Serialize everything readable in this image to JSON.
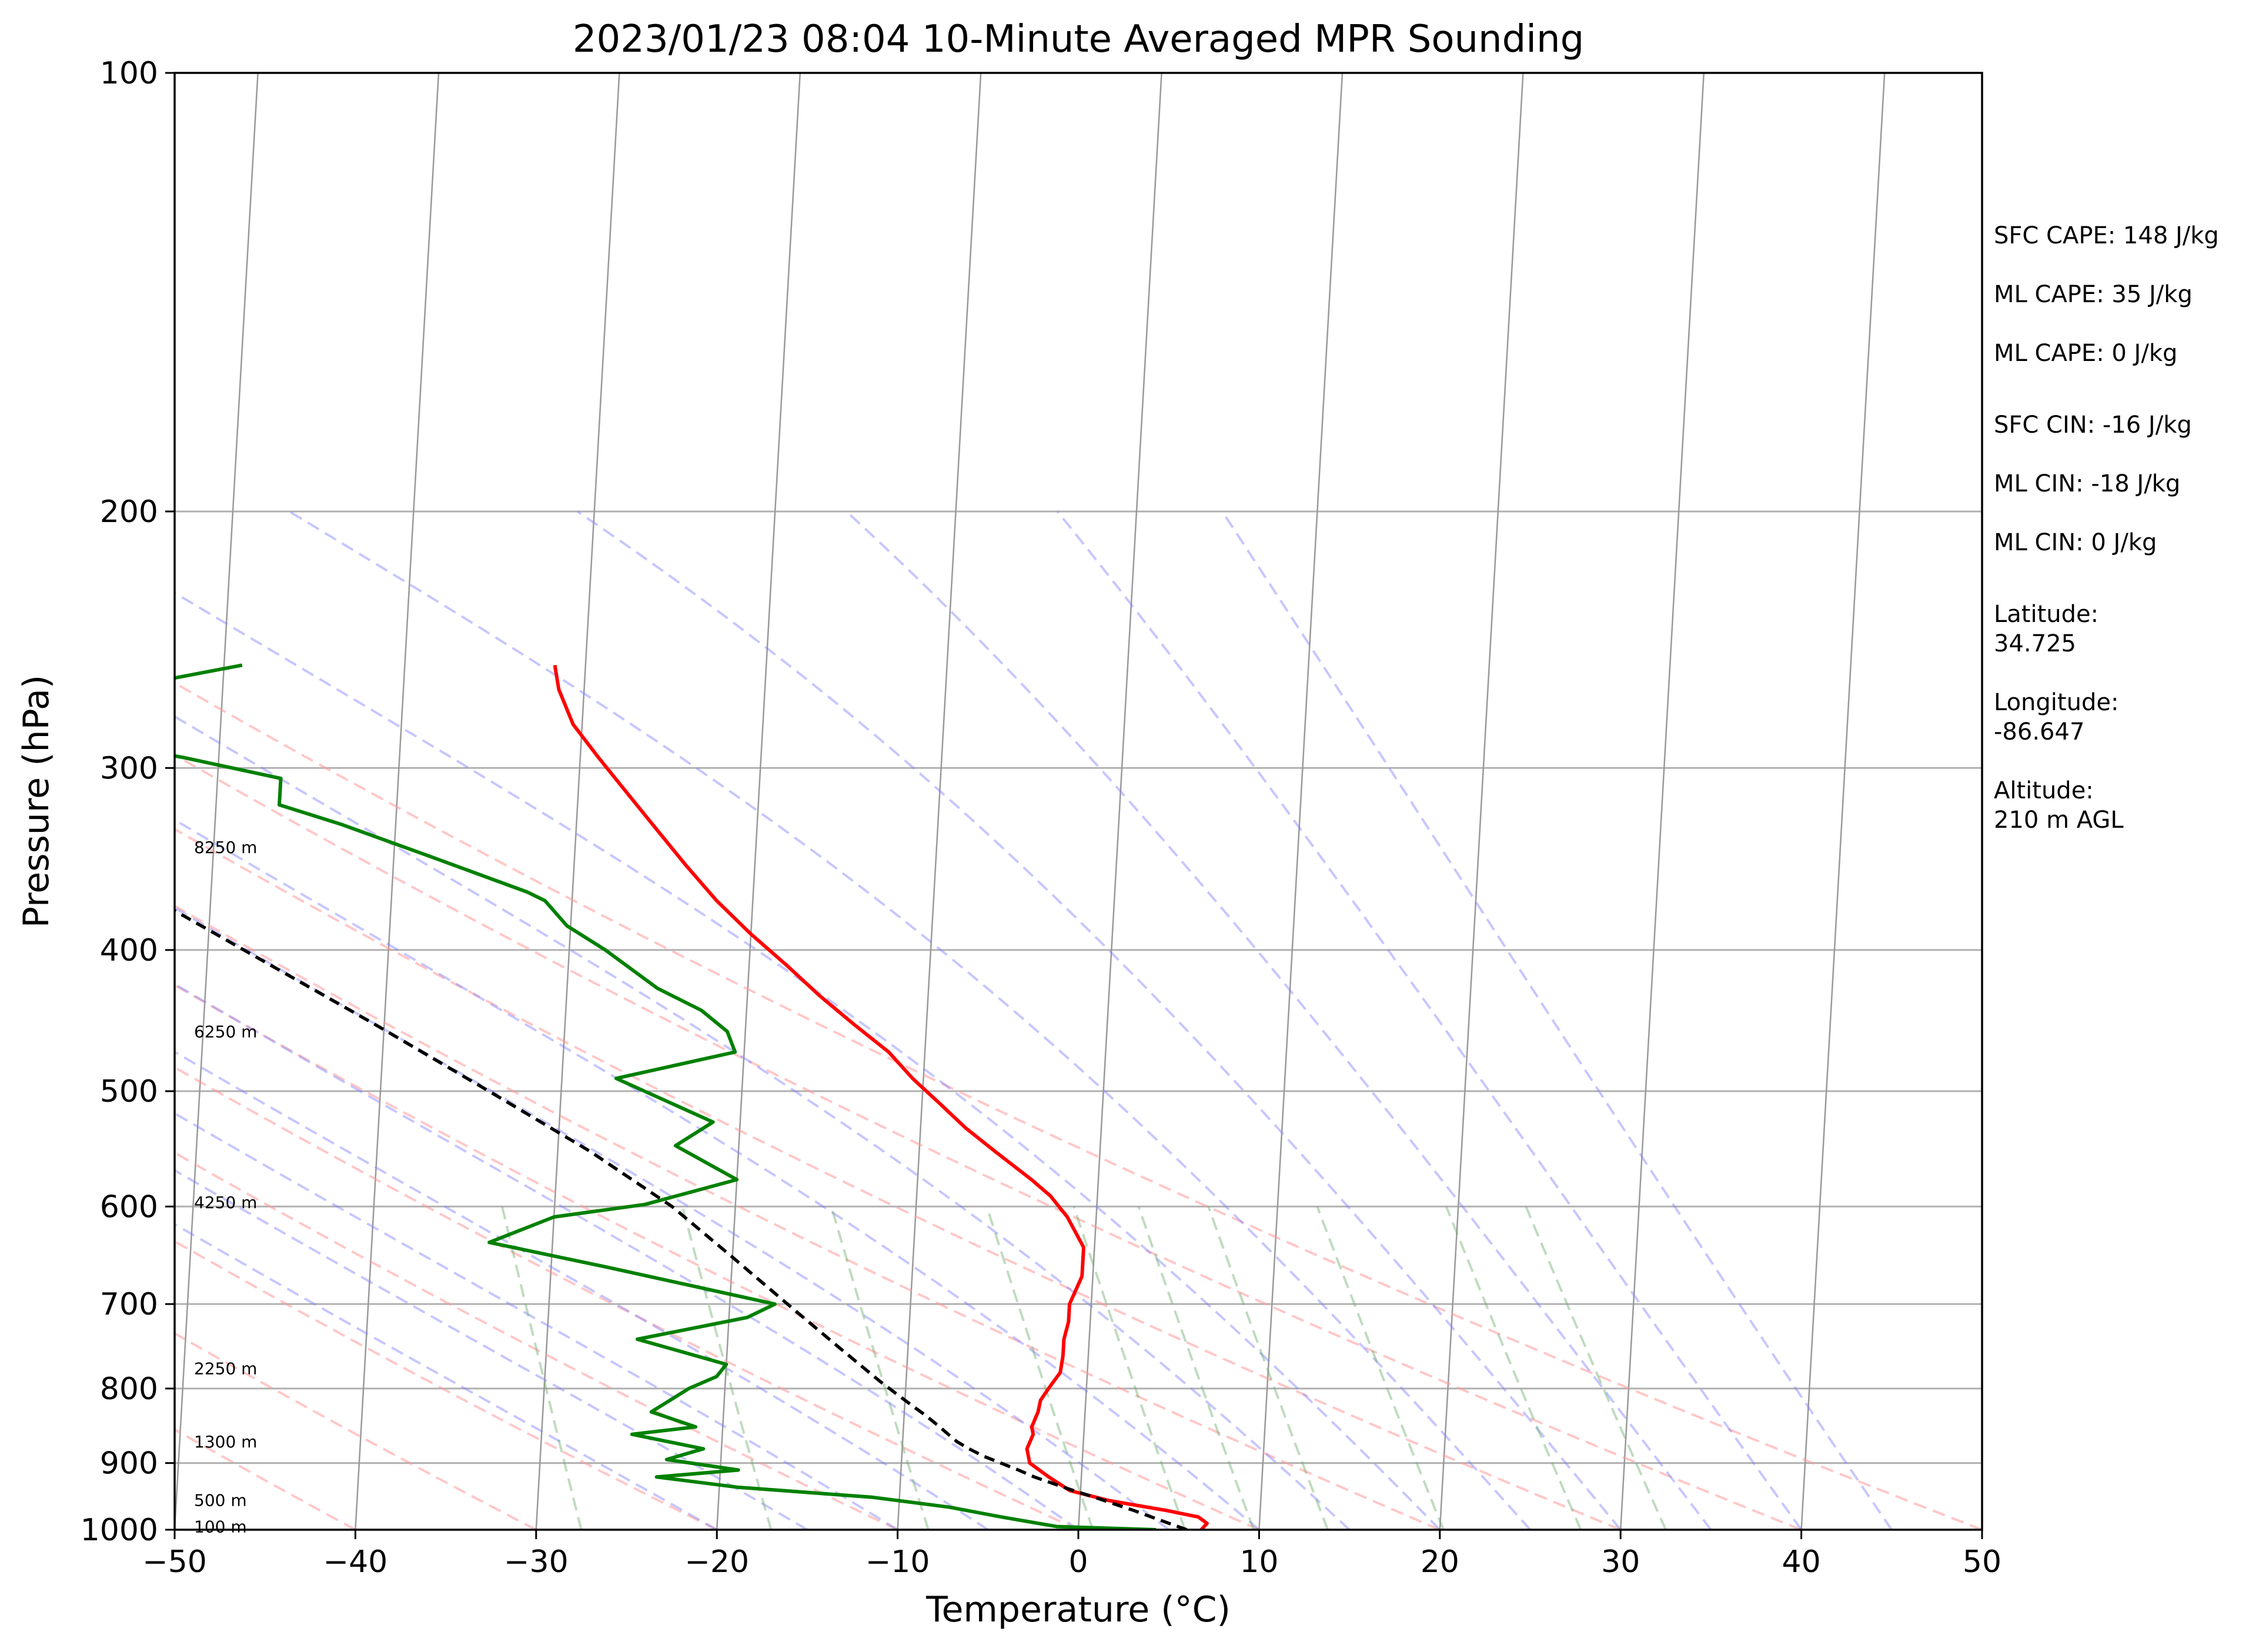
{
  "title": "2023/01/23 08:04 10-Minute Averaged MPR Sounding",
  "chart_data": {
    "type": "line",
    "title": "2023/01/23 08:04 10-Minute Averaged MPR Sounding",
    "xlabel": "Temperature (°C)",
    "ylabel": "Pressure (hPa)",
    "xlim": [
      -50,
      50
    ],
    "ylim": [
      1000,
      100
    ],
    "y_scale": "log",
    "grid": true,
    "x_ticks": [
      "−50",
      "−40",
      "−30",
      "−20",
      "−10",
      "0",
      "10",
      "20",
      "30",
      "40",
      "50"
    ],
    "y_ticks": [
      "100",
      "200",
      "300",
      "400",
      "500",
      "600",
      "700",
      "800",
      "900",
      "1000"
    ],
    "colors": {
      "temperature": "#ff0000",
      "dewpoint": "#008000",
      "parcel": "#000000",
      "dry_adiabats": "#ff9999",
      "moist_adiabats": "#8080ff",
      "mixing_ratio": "#70b070",
      "isotherms": "#999999"
    },
    "series": [
      {
        "key": "temperature",
        "points": [
          [
            6.8,
            1000
          ],
          [
            7.1,
            990
          ],
          [
            6.6,
            980
          ],
          [
            4.8,
            970
          ],
          [
            1.6,
            955
          ],
          [
            -0.6,
            940
          ],
          [
            -1.8,
            920
          ],
          [
            -2.9,
            900
          ],
          [
            -3.1,
            880
          ],
          [
            -2.8,
            860
          ],
          [
            -2.9,
            850
          ],
          [
            -2.6,
            830
          ],
          [
            -2.5,
            815
          ],
          [
            -2.1,
            800
          ],
          [
            -1.5,
            780
          ],
          [
            -1.4,
            760
          ],
          [
            -1.4,
            740
          ],
          [
            -1.2,
            720
          ],
          [
            -1.2,
            700
          ],
          [
            -0.6,
            670
          ],
          [
            -0.6,
            640
          ],
          [
            -1.6,
            610
          ],
          [
            -2.6,
            590
          ],
          [
            -3.7,
            575
          ],
          [
            -5.8,
            550
          ],
          [
            -7.5,
            530
          ],
          [
            -9.0,
            510
          ],
          [
            -10.6,
            490
          ],
          [
            -12.0,
            470
          ],
          [
            -14.0,
            450
          ],
          [
            -16.0,
            430
          ],
          [
            -17.9,
            410
          ],
          [
            -20.0,
            390
          ],
          [
            -22.0,
            370
          ],
          [
            -23.8,
            350
          ],
          [
            -25.6,
            330
          ],
          [
            -27.5,
            310
          ],
          [
            -29.0,
            295
          ],
          [
            -30.5,
            280
          ],
          [
            -31.4,
            265
          ],
          [
            -31.7,
            255
          ]
        ]
      },
      {
        "key": "dewpoint",
        "points": [
          [
            4.3,
            1000
          ],
          [
            -1.2,
            995
          ],
          [
            -4.3,
            980
          ],
          [
            -7.2,
            965
          ],
          [
            -11.5,
            950
          ],
          [
            -19.0,
            935
          ],
          [
            -23.5,
            920
          ],
          [
            -19.0,
            910
          ],
          [
            -23.0,
            895
          ],
          [
            -21.0,
            880
          ],
          [
            -25.0,
            860
          ],
          [
            -21.5,
            850
          ],
          [
            -24.0,
            830
          ],
          [
            -23.0,
            815
          ],
          [
            -22.0,
            800
          ],
          [
            -20.5,
            785
          ],
          [
            -20.0,
            770
          ],
          [
            -25.0,
            740
          ],
          [
            -19.0,
            715
          ],
          [
            -17.5,
            700
          ],
          [
            -27.0,
            660
          ],
          [
            -33.5,
            635
          ],
          [
            -30.0,
            610
          ],
          [
            -25.0,
            598
          ],
          [
            -20.0,
            575
          ],
          [
            -23.5,
            545
          ],
          [
            -21.5,
            525
          ],
          [
            -27.0,
            490
          ],
          [
            -20.5,
            470
          ],
          [
            -21.0,
            455
          ],
          [
            -22.5,
            440
          ],
          [
            -25.0,
            425
          ],
          [
            -28.0,
            400
          ],
          [
            -30.2,
            385
          ],
          [
            -31.5,
            370
          ],
          [
            -32.5,
            365
          ],
          [
            -38.0,
            345
          ],
          [
            -43.0,
            328
          ],
          [
            -46.5,
            318
          ],
          [
            -46.5,
            305
          ],
          [
            -52.0,
            295
          ],
          [
            -59.0,
            285
          ],
          [
            -62.0,
            278
          ],
          [
            -60.0,
            270
          ],
          [
            -56.0,
            265
          ],
          [
            -49.0,
            255
          ]
        ]
      },
      {
        "key": "parcel",
        "points": [
          [
            6.0,
            1000
          ],
          [
            5.0,
            990
          ],
          [
            4.0,
            980
          ],
          [
            3.0,
            970
          ],
          [
            1.9,
            960
          ],
          [
            0.8,
            950
          ],
          [
            -0.4,
            940
          ],
          [
            -1.5,
            930
          ],
          [
            -2.6,
            920
          ],
          [
            -3.5,
            910
          ],
          [
            -4.5,
            900
          ],
          [
            -5.5,
            890
          ],
          [
            -6.3,
            880
          ],
          [
            -7.0,
            870
          ],
          [
            -7.5,
            860
          ],
          [
            -8.0,
            850
          ],
          [
            -8.8,
            835
          ],
          [
            -9.7,
            820
          ],
          [
            -10.6,
            805
          ],
          [
            -11.5,
            790
          ],
          [
            -13.8,
            750
          ],
          [
            -16.5,
            705
          ],
          [
            -20.0,
            650
          ],
          [
            -23.5,
            600
          ],
          [
            -28.2,
            550
          ],
          [
            -34.0,
            500
          ],
          [
            -40.5,
            450
          ],
          [
            -48.0,
            400
          ],
          [
            -56.5,
            350
          ],
          [
            -64.0,
            310
          ],
          [
            -67.5,
            290
          ],
          [
            -72.0,
            265
          ],
          [
            -74.5,
            255
          ]
        ]
      }
    ],
    "height_labels": [
      {
        "text": "8250 m",
        "p": 340
      },
      {
        "text": "6250 m",
        "p": 455
      },
      {
        "text": "4250 m",
        "p": 596
      },
      {
        "text": "2250 m",
        "p": 775
      },
      {
        "text": "1300 m",
        "p": 870
      },
      {
        "text": "500 m",
        "p": 954
      },
      {
        "text": "100 m",
        "p": 995
      }
    ],
    "mixing_ratio_start_temps": [
      -27.5,
      -17,
      -8.3,
      0.8,
      5.9,
      9.7,
      13.8,
      20.2,
      27.8,
      32.5
    ],
    "moist_adiabat_temps": [
      -20,
      -15,
      -10,
      -5,
      0,
      5,
      10,
      15,
      20,
      25,
      30,
      35,
      40,
      45
    ],
    "dry_adiabat_temps": [
      -60,
      -50,
      -40,
      -30,
      -20,
      -10,
      0,
      10,
      20,
      30,
      40,
      50
    ],
    "isotherm_temps": [
      -150,
      -140,
      -130,
      -120,
      -110,
      -100,
      -90,
      -80,
      -70,
      -60,
      -50,
      -40,
      -30,
      -20,
      -10,
      0,
      10,
      20,
      30,
      40,
      50
    ]
  },
  "side_panel": {
    "sfc_cape": "SFC CAPE: 148 J/kg",
    "ml_cape_1": "ML CAPE: 35 J/kg",
    "ml_cape_2": "ML CAPE: 0 J/kg",
    "sfc_cin": "SFC CIN: -16 J/kg",
    "ml_cin_1": "ML CIN: -18 J/kg",
    "ml_cin_2": "ML CIN: 0 J/kg",
    "latitude_label": "Latitude:",
    "latitude_value": "34.725",
    "longitude_label": "Longitude:",
    "longitude_value": "-86.647",
    "altitude_label": "Altitude:",
    "altitude_value": "210 m AGL"
  }
}
